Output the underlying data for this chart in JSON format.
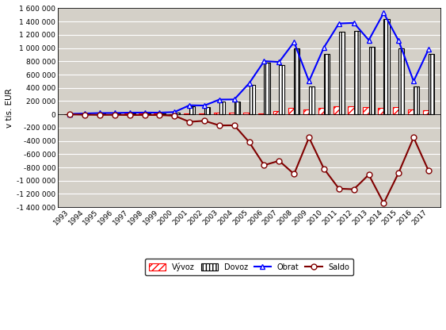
{
  "years": [
    1993,
    1994,
    1995,
    1996,
    1997,
    1998,
    1999,
    2000,
    2001,
    2002,
    2003,
    2004,
    2005,
    2006,
    2007,
    2008,
    2009,
    2010,
    2011,
    2012,
    2013,
    2014,
    2015,
    2016,
    2017
  ],
  "vyvoz": [
    3000,
    4000,
    6000,
    7000,
    8000,
    9000,
    8000,
    7000,
    12000,
    18000,
    28000,
    30000,
    25000,
    18000,
    45000,
    95000,
    75000,
    95000,
    125000,
    125000,
    105000,
    95000,
    115000,
    75000,
    65000
  ],
  "dovoz": [
    4000,
    9000,
    14000,
    14000,
    18000,
    18000,
    18000,
    28000,
    125000,
    115000,
    195000,
    195000,
    445000,
    785000,
    745000,
    995000,
    425000,
    915000,
    1245000,
    1255000,
    1015000,
    1435000,
    995000,
    425000,
    915000
  ],
  "obrat": [
    7000,
    13000,
    20000,
    21000,
    26000,
    27000,
    26000,
    35000,
    137000,
    133000,
    223000,
    225000,
    470000,
    803000,
    790000,
    1090000,
    500000,
    1010000,
    1370000,
    1380000,
    1120000,
    1530000,
    1110000,
    500000,
    980000
  ],
  "saldo": [
    -1000,
    -5000,
    -8000,
    -7000,
    -10000,
    -9000,
    -10000,
    -21000,
    -113000,
    -97000,
    -167000,
    -165000,
    -420000,
    -767000,
    -700000,
    -900000,
    -350000,
    -820000,
    -1120000,
    -1130000,
    -910000,
    -1340000,
    -880000,
    -350000,
    -850000
  ],
  "bg_color": "#d4d0c8",
  "vyvoz_facecolor": "#ffffff",
  "vyvoz_edgecolor": "#ff0000",
  "vyvoz_hatch": "////",
  "dovoz_facecolor": "#ffffff",
  "dovoz_edgecolor": "#000000",
  "dovoz_hatch": "||||",
  "obrat_color": "#0000ff",
  "saldo_color": "#800000",
  "ylabel": "v tis. EUR",
  "ylim_min": -1400000,
  "ylim_max": 1600000,
  "ytick_step": 200000,
  "bar_width": 0.38
}
